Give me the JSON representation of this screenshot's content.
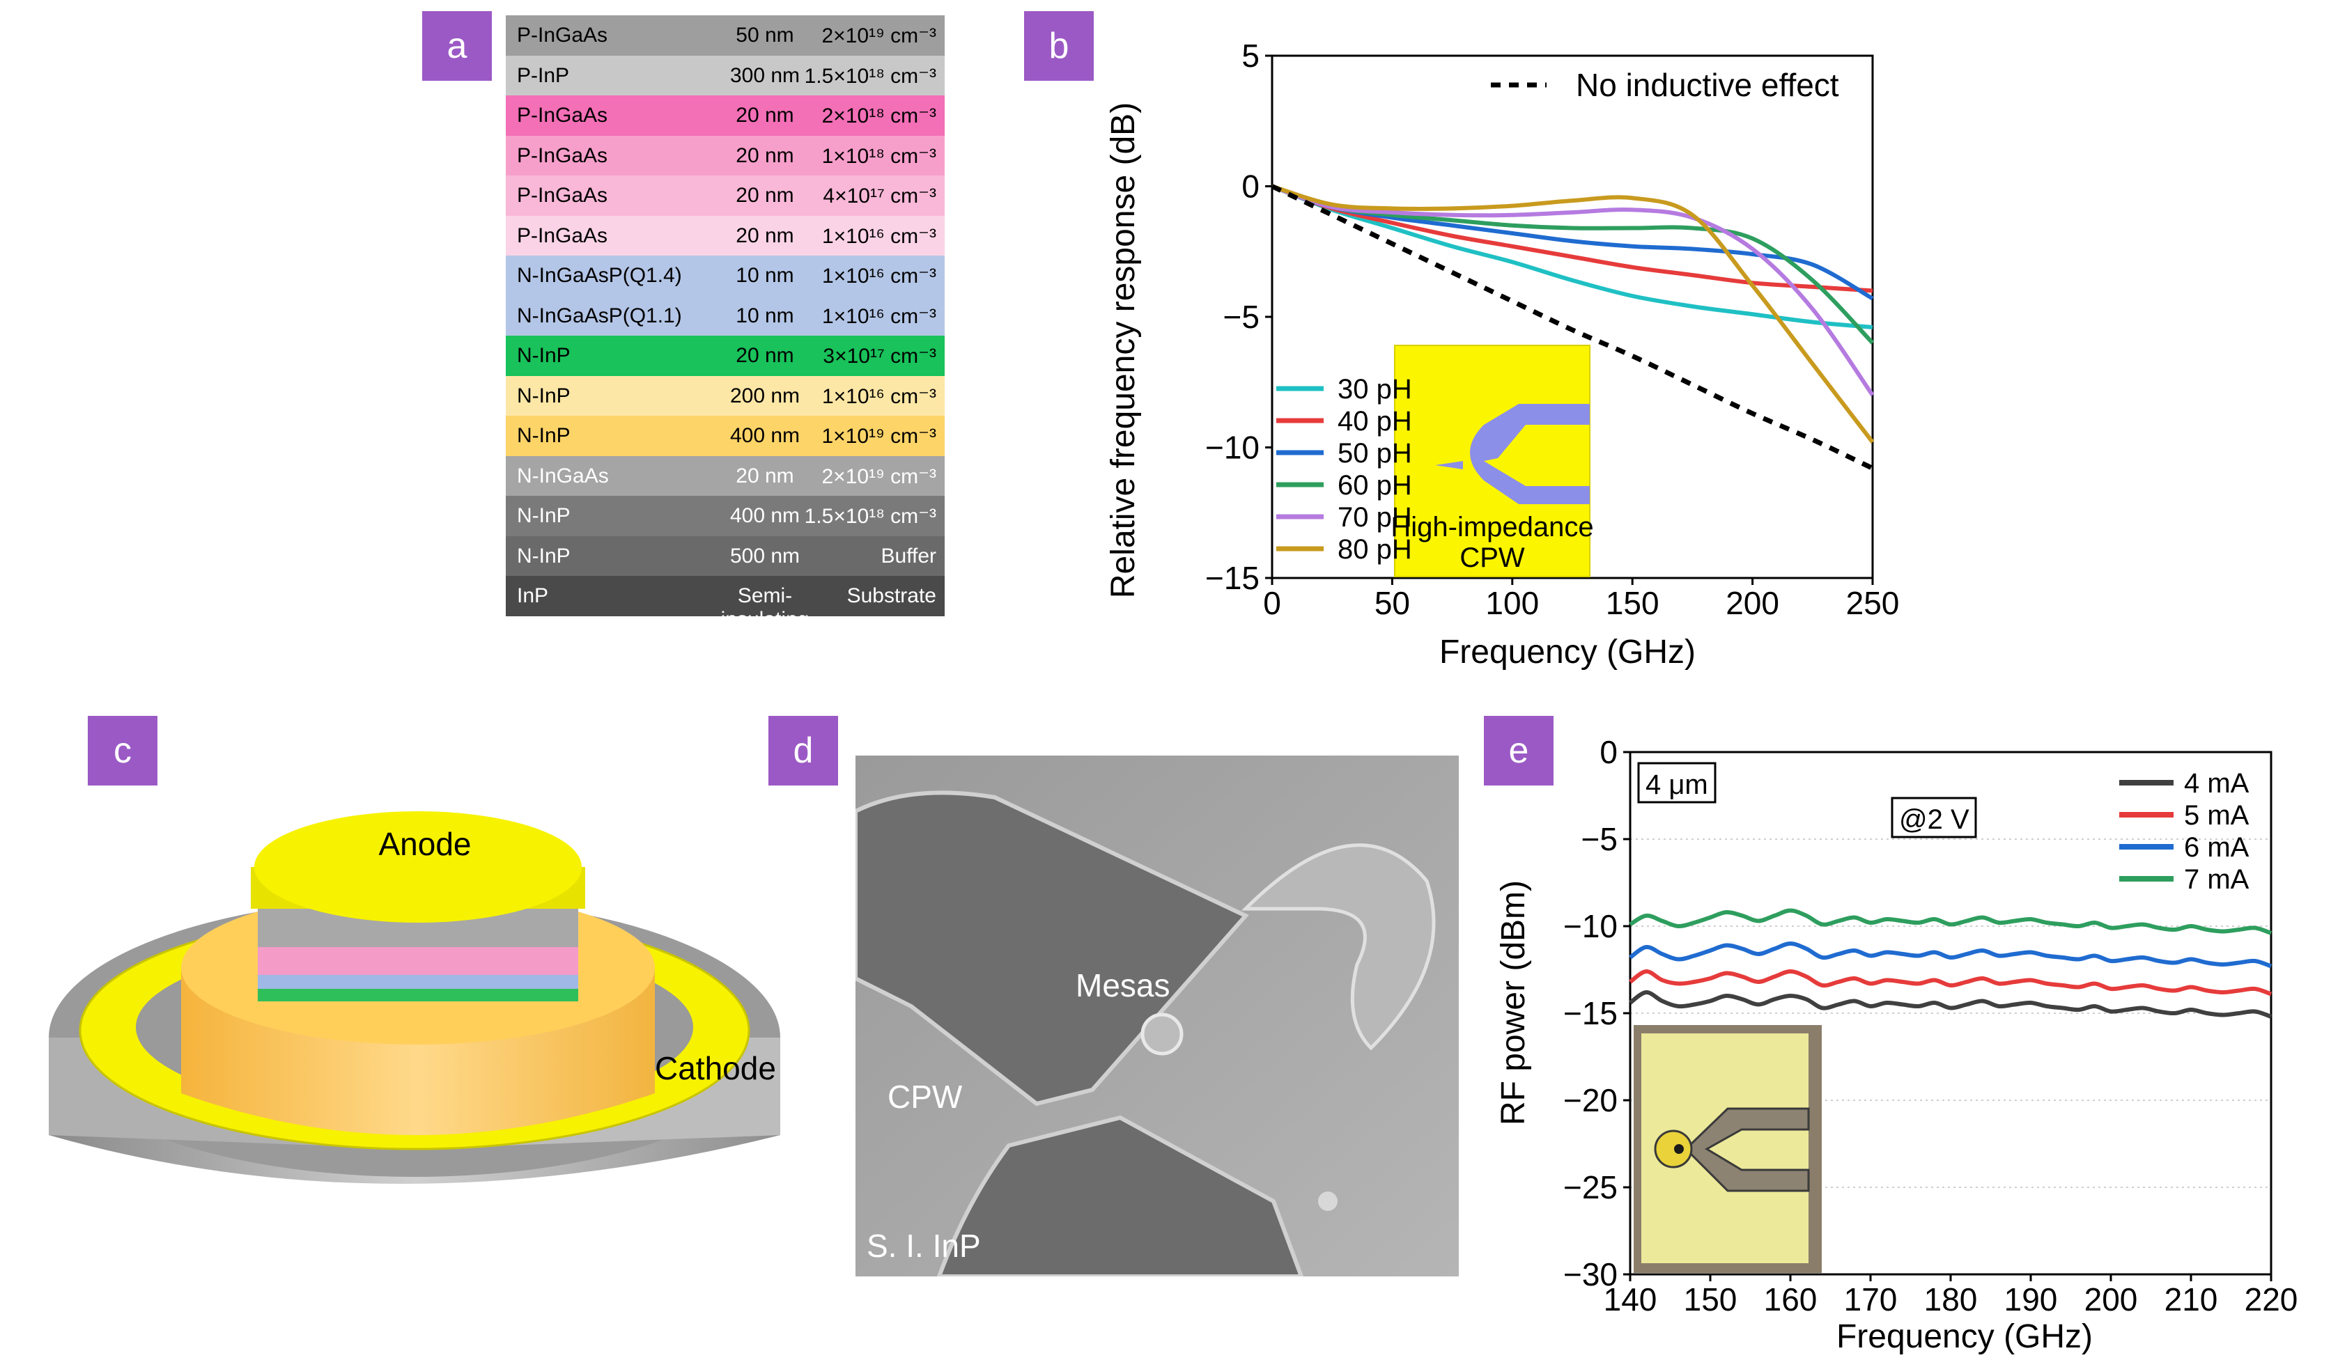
{
  "panels": {
    "a": "a",
    "b": "b",
    "c": "c",
    "d": "d",
    "e": "e"
  },
  "layer_stack": [
    {
      "material": "P-InGaAs",
      "thickness": "50 nm",
      "doping": "2×10¹⁹ cm⁻³",
      "color": "#9e9e9e",
      "text": "#000000"
    },
    {
      "material": "P-InP",
      "thickness": "300 nm",
      "doping": "1.5×10¹⁸ cm⁻³",
      "color": "#c8c8c8",
      "text": "#000000"
    },
    {
      "material": "P-InGaAs",
      "thickness": "20 nm",
      "doping": "2×10¹⁸ cm⁻³",
      "color": "#f36fb6",
      "text": "#000000"
    },
    {
      "material": "P-InGaAs",
      "thickness": "20 nm",
      "doping": "1×10¹⁸ cm⁻³",
      "color": "#f79fcb",
      "text": "#000000"
    },
    {
      "material": "P-InGaAs",
      "thickness": "20 nm",
      "doping": "4×10¹⁷ cm⁻³",
      "color": "#f9b8d8",
      "text": "#000000"
    },
    {
      "material": "P-InGaAs",
      "thickness": "20 nm",
      "doping": "1×10¹⁶ cm⁻³",
      "color": "#fbd3e6",
      "text": "#000000"
    },
    {
      "material": "N-InGaAsP(Q1.4)",
      "thickness": "10 nm",
      "doping": "1×10¹⁶ cm⁻³",
      "color": "#b4c6e7",
      "text": "#000000"
    },
    {
      "material": "N-InGaAsP(Q1.1)",
      "thickness": "10 nm",
      "doping": "1×10¹⁶ cm⁻³",
      "color": "#b4c6e7",
      "text": "#000000"
    },
    {
      "material": "N-InP",
      "thickness": "20 nm",
      "doping": "3×10¹⁷ cm⁻³",
      "color": "#19c25a",
      "text": "#000000"
    },
    {
      "material": "N-InP",
      "thickness": "200 nm",
      "doping": "1×10¹⁶ cm⁻³",
      "color": "#fde7a6",
      "text": "#000000"
    },
    {
      "material": "N-InP",
      "thickness": "400 nm",
      "doping": "1×10¹⁹ cm⁻³",
      "color": "#fdd468",
      "text": "#000000"
    },
    {
      "material": "N-InGaAs",
      "thickness": "20 nm",
      "doping": "2×10¹⁹ cm⁻³",
      "color": "#a5a5a5",
      "text": "#ffffff"
    },
    {
      "material": "N-InP",
      "thickness": "400 nm",
      "doping": "1.5×10¹⁸ cm⁻³",
      "color": "#7a7a7a",
      "text": "#ffffff"
    },
    {
      "material": "N-InP",
      "thickness": "500 nm",
      "doping": "Buffer",
      "color": "#6a6a6a",
      "text": "#ffffff"
    },
    {
      "material": "InP",
      "thickness": "Semi-insulating",
      "doping": "Substrate",
      "color": "#4a4a4a",
      "text": "#ffffff"
    }
  ],
  "chart_data": [
    {
      "type": "line",
      "xlabel": "Frequency (GHz)",
      "ylabel": "Relative frequency response (dB)",
      "xlim": [
        0,
        250
      ],
      "ylim": [
        -15,
        5
      ],
      "xticks": [
        "0",
        "50",
        "100",
        "150",
        "200",
        "250"
      ],
      "yticks": [
        "5",
        "0",
        "−5",
        "−10",
        "−15"
      ],
      "x": [
        0,
        25,
        50,
        75,
        100,
        125,
        150,
        175,
        200,
        225,
        250
      ],
      "series": [
        {
          "name": "30 pH",
          "color": "#1fc0c4",
          "values": [
            0,
            -0.9,
            -1.6,
            -2.3,
            -2.9,
            -3.6,
            -4.2,
            -4.6,
            -4.9,
            -5.2,
            -5.4
          ]
        },
        {
          "name": "40 pH",
          "color": "#e63b3b",
          "values": [
            0,
            -0.85,
            -1.4,
            -1.9,
            -2.3,
            -2.7,
            -3.1,
            -3.4,
            -3.7,
            -3.85,
            -4.0
          ]
        },
        {
          "name": "50 pH",
          "color": "#1f6bd0",
          "values": [
            0,
            -0.8,
            -1.2,
            -1.5,
            -1.8,
            -2.1,
            -2.3,
            -2.4,
            -2.6,
            -3.0,
            -4.3
          ]
        },
        {
          "name": "60 pH",
          "color": "#2e9e5e",
          "values": [
            0,
            -0.8,
            -1.1,
            -1.3,
            -1.5,
            -1.6,
            -1.6,
            -1.6,
            -2.0,
            -3.6,
            -6.0
          ]
        },
        {
          "name": "70 pH",
          "color": "#b57be0",
          "values": [
            0,
            -0.8,
            -1.0,
            -1.1,
            -1.1,
            -1.0,
            -0.9,
            -1.2,
            -2.4,
            -4.7,
            -8.0
          ]
        },
        {
          "name": "80 pH",
          "color": "#c89a1e",
          "values": [
            0,
            -0.7,
            -0.85,
            -0.85,
            -0.75,
            -0.55,
            -0.45,
            -1.1,
            -3.8,
            -6.8,
            -9.8
          ]
        },
        {
          "name": "No inductive effect",
          "color": "#000000",
          "dashed": true,
          "values": [
            0,
            -1.1,
            -2.2,
            -3.3,
            -4.4,
            -5.5,
            -6.5,
            -7.6,
            -8.7,
            -9.7,
            -10.8
          ]
        }
      ],
      "inset_label": [
        "High-impedance",
        "CPW"
      ]
    },
    {
      "type": "line",
      "xlabel": "Frequency (GHz)",
      "ylabel": "RF power (dBm)",
      "xlim": [
        140,
        220
      ],
      "ylim": [
        -30,
        0
      ],
      "xticks": [
        "140",
        "150",
        "160",
        "170",
        "180",
        "190",
        "200",
        "210",
        "220"
      ],
      "yticks": [
        "0",
        "−5",
        "−10",
        "−15",
        "−20",
        "−25",
        "−30"
      ],
      "x": [
        140,
        142,
        144,
        146,
        148,
        150,
        152,
        154,
        156,
        158,
        160,
        162,
        164,
        166,
        168,
        170,
        172,
        174,
        176,
        178,
        180,
        182,
        184,
        186,
        188,
        190,
        192,
        194,
        196,
        198,
        200,
        202,
        204,
        206,
        208,
        210,
        212,
        214,
        216,
        218,
        220
      ],
      "series": [
        {
          "name": "4 mA",
          "color": "#404040",
          "values": [
            -14.4,
            -13.8,
            -14.3,
            -14.6,
            -14.5,
            -14.3,
            -14.0,
            -14.2,
            -14.5,
            -14.2,
            -14.0,
            -14.2,
            -14.7,
            -14.5,
            -14.3,
            -14.6,
            -14.4,
            -14.5,
            -14.6,
            -14.4,
            -14.7,
            -14.5,
            -14.3,
            -14.6,
            -14.5,
            -14.4,
            -14.6,
            -14.7,
            -14.8,
            -14.6,
            -14.9,
            -14.8,
            -14.7,
            -14.9,
            -15.0,
            -14.8,
            -15.0,
            -15.1,
            -15.0,
            -14.9,
            -15.2
          ]
        },
        {
          "name": "5 mA",
          "color": "#e63b3b",
          "values": [
            -13.2,
            -12.6,
            -13.1,
            -13.3,
            -13.2,
            -13.0,
            -12.7,
            -12.9,
            -13.2,
            -12.9,
            -12.6,
            -12.9,
            -13.4,
            -13.2,
            -13.0,
            -13.3,
            -13.1,
            -13.2,
            -13.3,
            -13.1,
            -13.4,
            -13.2,
            -13.0,
            -13.3,
            -13.2,
            -13.1,
            -13.3,
            -13.4,
            -13.5,
            -13.3,
            -13.6,
            -13.5,
            -13.4,
            -13.6,
            -13.7,
            -13.5,
            -13.7,
            -13.8,
            -13.7,
            -13.6,
            -13.9
          ]
        },
        {
          "name": "6 mA",
          "color": "#1f6bd0",
          "values": [
            -11.8,
            -11.2,
            -11.6,
            -11.9,
            -11.7,
            -11.4,
            -11.1,
            -11.3,
            -11.6,
            -11.3,
            -11.0,
            -11.3,
            -11.8,
            -11.6,
            -11.4,
            -11.7,
            -11.5,
            -11.6,
            -11.7,
            -11.5,
            -11.8,
            -11.6,
            -11.4,
            -11.7,
            -11.6,
            -11.5,
            -11.7,
            -11.8,
            -11.9,
            -11.7,
            -12.0,
            -11.9,
            -11.8,
            -12.0,
            -12.1,
            -11.9,
            -12.1,
            -12.2,
            -12.1,
            -12.0,
            -12.3
          ]
        },
        {
          "name": "7 mA",
          "color": "#2e9e5e",
          "values": [
            -9.9,
            -9.4,
            -9.7,
            -10.0,
            -9.8,
            -9.5,
            -9.2,
            -9.4,
            -9.7,
            -9.4,
            -9.1,
            -9.4,
            -9.9,
            -9.7,
            -9.5,
            -9.8,
            -9.6,
            -9.7,
            -9.8,
            -9.6,
            -9.9,
            -9.7,
            -9.5,
            -9.8,
            -9.7,
            -9.6,
            -9.8,
            -9.9,
            -10.0,
            -9.8,
            -10.1,
            -10.0,
            -9.9,
            -10.1,
            -10.2,
            -10.0,
            -10.2,
            -10.3,
            -10.2,
            -10.1,
            -10.4
          ]
        }
      ],
      "annotations": [
        "4 μm",
        "@2 V"
      ]
    }
  ],
  "device3d": {
    "anode": "Anode",
    "cathode": "Cathode"
  },
  "sem": {
    "mesas": "Mesas",
    "cpw": "CPW",
    "substrate": "S. I. InP"
  }
}
